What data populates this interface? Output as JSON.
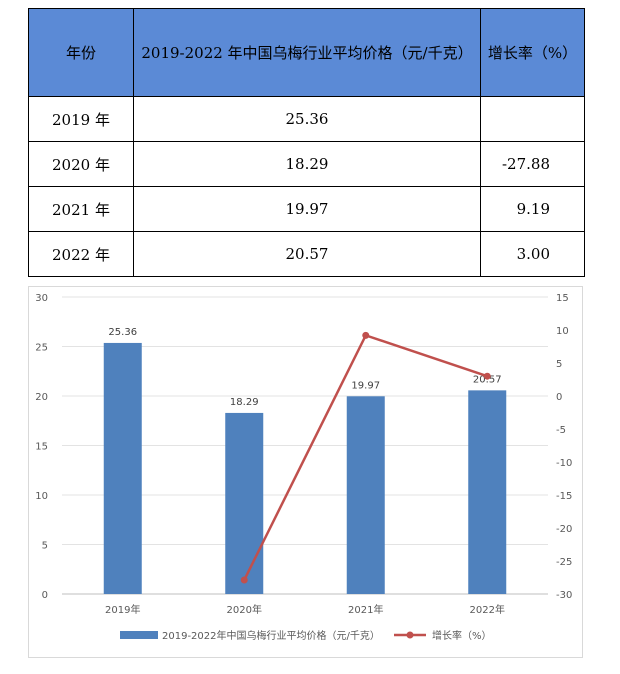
{
  "table": {
    "headers": [
      "年份",
      "2019-2022 年中国乌梅行业平均价格（元/千克）",
      "增长率（%）"
    ],
    "rows": [
      [
        "2019 年",
        "25.36",
        ""
      ],
      [
        "2020 年",
        "18.29",
        "-27.88"
      ],
      [
        "2021 年",
        "19.97",
        "9.19"
      ],
      [
        "2022 年",
        "20.57",
        "3.00"
      ]
    ]
  },
  "chart_data": {
    "type": "bar",
    "categories": [
      "2019年",
      "2020年",
      "2021年",
      "2022年"
    ],
    "series": [
      {
        "name": "2019-2022年中国乌梅行业平均价格（元/千克）",
        "type": "bar",
        "axis": "left",
        "values": [
          25.36,
          18.29,
          19.97,
          20.57
        ],
        "color": "#4f81bd",
        "data_labels": [
          "25.36",
          "18.29",
          "19.97",
          "20.57"
        ]
      },
      {
        "name": "增长率（%）",
        "type": "line",
        "axis": "right",
        "values": [
          null,
          -27.88,
          9.19,
          3.0
        ],
        "color": "#c0504d"
      }
    ],
    "y_left": {
      "min": 0,
      "max": 30,
      "ticks": [
        0,
        5,
        10,
        15,
        20,
        25,
        30
      ]
    },
    "y_right": {
      "min": -30,
      "max": 15,
      "ticks": [
        -30,
        -25,
        -20,
        -15,
        -10,
        -5,
        0,
        5,
        10,
        15
      ]
    },
    "grid": true,
    "legend": "bottom"
  }
}
